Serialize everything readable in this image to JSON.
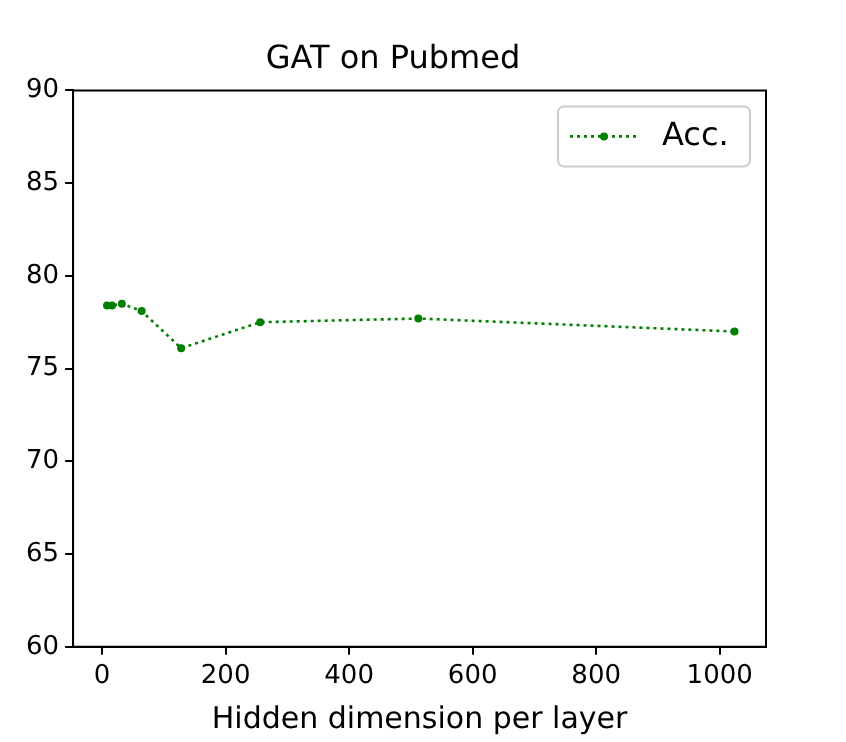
{
  "chart_data": {
    "type": "line",
    "title": "GAT on Pubmed",
    "xlabel": "Hidden dimension per layer",
    "x": [
      8,
      16,
      32,
      64,
      128,
      256,
      512,
      1024
    ],
    "series": [
      {
        "name": "Acc.",
        "color": "#008000",
        "values": [
          78.4,
          78.4,
          78.5,
          78.1,
          76.1,
          77.5,
          77.7,
          77.0
        ]
      }
    ],
    "xlim": [
      -47,
      1075
    ],
    "xticks": [
      0,
      200,
      400,
      600,
      800,
      1000
    ],
    "ylim": [
      60,
      90
    ],
    "yticks": [
      60,
      65,
      70,
      75,
      80,
      85,
      90
    ],
    "grid": false,
    "legend": "top right",
    "marker": "circle",
    "line_style": "dotted"
  }
}
